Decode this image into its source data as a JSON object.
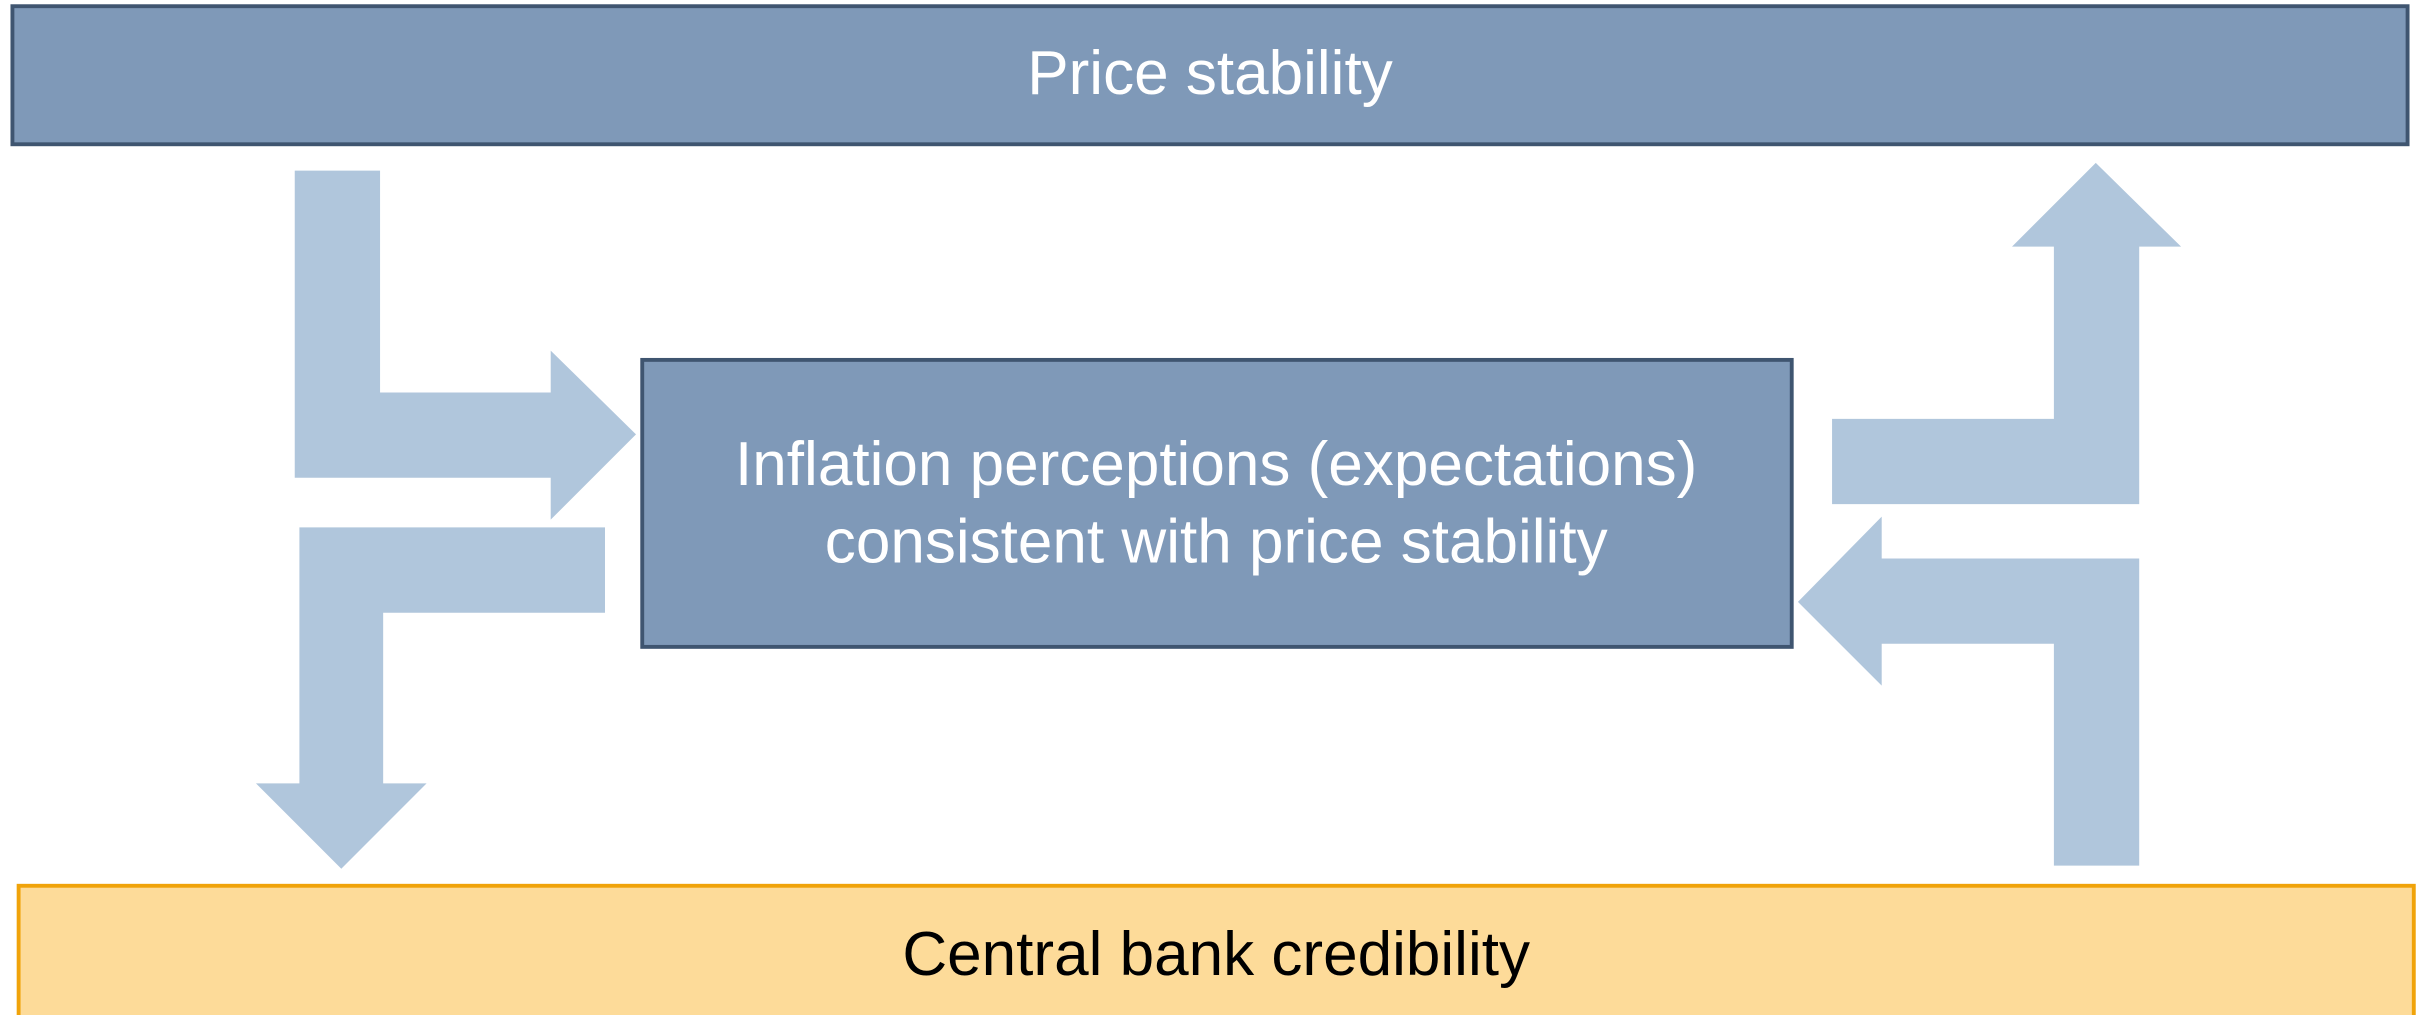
{
  "top_box": {
    "label": "Price stability"
  },
  "middle_box": {
    "lines": [
      "Inflation perceptions (expectations)",
      "consistent with price stability"
    ]
  },
  "bottom_box": {
    "label": "Central bank credibility"
  }
}
